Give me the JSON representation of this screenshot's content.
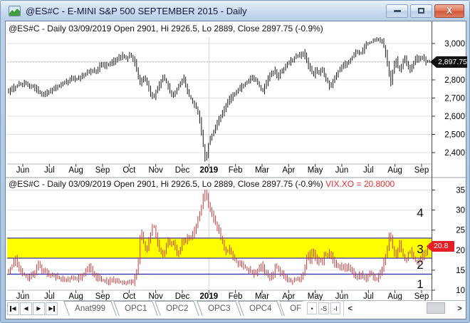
{
  "window": {
    "title": "@ES#C - E-MINI S&P 500 SEPTEMBER 2015 - Daily",
    "close_glyph": "X"
  },
  "panes": {
    "top": {
      "header": "@ES#C - Daily 03/09/2019 Open 2901, Hi 2926.5, Lo 2889, Close 2897.75 (-0.9%)",
      "price_tag": "2,897.75",
      "y_ticks": [
        {
          "v": 3000,
          "t": "3,000"
        },
        {
          "v": 2800,
          "t": "2,800"
        },
        {
          "v": 2700,
          "t": "2,700"
        },
        {
          "v": 2600,
          "t": "2,600"
        },
        {
          "v": 2500,
          "t": "2,500"
        },
        {
          "v": 2400,
          "t": "2,400"
        }
      ]
    },
    "bottom": {
      "header_black": "@ES#C - Daily 03/09/2019 Open 2901, Hi 2926.5, Lo 2889, Close 2897.75 (-0.9%)",
      "header_red": " VIX.XO = 20.8000",
      "value_tag": "20.8",
      "y_ticks": [
        {
          "v": 35,
          "t": "35"
        },
        {
          "v": 30,
          "t": "30"
        },
        {
          "v": 25,
          "t": "25"
        },
        {
          "v": 20,
          "t": "20"
        },
        {
          "v": 15,
          "t": "15"
        },
        {
          "v": 10,
          "t": "10"
        }
      ],
      "zone_labels": [
        {
          "t": "4",
          "v": 29.4
        },
        {
          "t": "3",
          "v": 20.3
        },
        {
          "t": "2",
          "v": 16.4
        },
        {
          "t": "1",
          "v": 11.6
        }
      ]
    }
  },
  "x_axis": {
    "months": [
      "Jun",
      "Jul",
      "Aug",
      "Sep",
      "Oct",
      "Nov",
      "Dec",
      "2019",
      "Feb",
      "Mar",
      "Apr",
      "May",
      "Jun",
      "Jul",
      "Aug",
      "Sep"
    ],
    "bold_index": 7
  },
  "tabbar": {
    "tabs": [
      "Anat999",
      "OPC1",
      "OPC2",
      "OPC3",
      "OPC4"
    ],
    "tab_cut": "OF",
    "mini_buttons": [
      "•",
      "-S",
      "-I"
    ],
    "scroll_left": "<",
    "scroll_right": ">"
  },
  "colors": {
    "price_bars": "#141414",
    "vix_bars": "#c43a3a",
    "band_fill": "#ffff00",
    "band_lines": "#2323ad",
    "tag_black": "#101010",
    "tag_red": "#e61e25",
    "red_text": "#e23030",
    "grid": "#dcdfe3"
  },
  "chart_data": [
    {
      "type": "ohlc-bar",
      "symbol": "@ES#C",
      "interval": "Daily",
      "title": "@ES#C - Daily 03/09/2019 Open 2901, Hi 2926.5, Lo 2889, Close 2897.75 (-0.9%)",
      "open": 2901,
      "high": 2926.5,
      "low": 2889,
      "close": 2897.75,
      "change_pct": -0.9,
      "ylim": [
        2337,
        3035
      ],
      "y_gridlines": [
        2400,
        2500,
        2600,
        2700,
        2800,
        2900,
        3000
      ],
      "x_categories": [
        "Jun 2018",
        "Jul",
        "Aug",
        "Sep",
        "Oct",
        "Nov",
        "Dec",
        "2019",
        "Feb",
        "Mar",
        "Apr",
        "May",
        "Jun",
        "Jul",
        "Aug",
        "Sep 2019"
      ],
      "waypoints": [
        [
          0.0,
          2735
        ],
        [
          0.015,
          2760
        ],
        [
          0.035,
          2780
        ],
        [
          0.055,
          2770
        ],
        [
          0.075,
          2735
        ],
        [
          0.085,
          2715
        ],
        [
          0.1,
          2740
        ],
        [
          0.12,
          2765
        ],
        [
          0.14,
          2790
        ],
        [
          0.155,
          2810
        ],
        [
          0.162,
          2800
        ],
        [
          0.175,
          2820
        ],
        [
          0.19,
          2840
        ],
        [
          0.205,
          2850
        ],
        [
          0.212,
          2840
        ],
        [
          0.218,
          2895
        ],
        [
          0.228,
          2880
        ],
        [
          0.24,
          2885
        ],
        [
          0.252,
          2905
        ],
        [
          0.265,
          2925
        ],
        [
          0.272,
          2935
        ],
        [
          0.28,
          2915
        ],
        [
          0.29,
          2940
        ],
        [
          0.3,
          2900
        ],
        [
          0.307,
          2830
        ],
        [
          0.312,
          2775
        ],
        [
          0.32,
          2820
        ],
        [
          0.33,
          2780
        ],
        [
          0.34,
          2715
        ],
        [
          0.345,
          2700
        ],
        [
          0.352,
          2740
        ],
        [
          0.36,
          2780
        ],
        [
          0.368,
          2815
        ],
        [
          0.375,
          2790
        ],
        [
          0.385,
          2730
        ],
        [
          0.39,
          2705
        ],
        [
          0.398,
          2745
        ],
        [
          0.406,
          2770
        ],
        [
          0.413,
          2790
        ],
        [
          0.416,
          2815
        ],
        [
          0.422,
          2750
        ],
        [
          0.428,
          2715
        ],
        [
          0.435,
          2690
        ],
        [
          0.442,
          2665
        ],
        [
          0.448,
          2635
        ],
        [
          0.452,
          2600
        ],
        [
          0.456,
          2545
        ],
        [
          0.46,
          2480
        ],
        [
          0.464,
          2405
        ],
        [
          0.468,
          2345
        ],
        [
          0.472,
          2410
        ],
        [
          0.476,
          2465
        ],
        [
          0.48,
          2480
        ],
        [
          0.485,
          2510
        ],
        [
          0.49,
          2530
        ],
        [
          0.497,
          2570
        ],
        [
          0.504,
          2605
        ],
        [
          0.511,
          2635
        ],
        [
          0.518,
          2665
        ],
        [
          0.525,
          2695
        ],
        [
          0.532,
          2710
        ],
        [
          0.538,
          2720
        ],
        [
          0.545,
          2740
        ],
        [
          0.552,
          2760
        ],
        [
          0.56,
          2780
        ],
        [
          0.568,
          2795
        ],
        [
          0.576,
          2810
        ],
        [
          0.584,
          2800
        ],
        [
          0.592,
          2785
        ],
        [
          0.598,
          2750
        ],
        [
          0.602,
          2735
        ],
        [
          0.61,
          2780
        ],
        [
          0.618,
          2815
        ],
        [
          0.626,
          2840
        ],
        [
          0.632,
          2855
        ],
        [
          0.637,
          2810
        ],
        [
          0.643,
          2835
        ],
        [
          0.65,
          2855
        ],
        [
          0.658,
          2875
        ],
        [
          0.666,
          2900
        ],
        [
          0.675,
          2915
        ],
        [
          0.684,
          2930
        ],
        [
          0.693,
          2940
        ],
        [
          0.7,
          2950
        ],
        [
          0.706,
          2915
        ],
        [
          0.712,
          2870
        ],
        [
          0.718,
          2850
        ],
        [
          0.723,
          2825
        ],
        [
          0.729,
          2855
        ],
        [
          0.735,
          2840
        ],
        [
          0.741,
          2860
        ],
        [
          0.748,
          2830
        ],
        [
          0.756,
          2790
        ],
        [
          0.762,
          2755
        ],
        [
          0.772,
          2805
        ],
        [
          0.782,
          2850
        ],
        [
          0.79,
          2880
        ],
        [
          0.8,
          2890
        ],
        [
          0.81,
          2910
        ],
        [
          0.82,
          2945
        ],
        [
          0.828,
          2950
        ],
        [
          0.836,
          2945
        ],
        [
          0.846,
          2995
        ],
        [
          0.856,
          3005
        ],
        [
          0.866,
          3015
        ],
        [
          0.876,
          3020
        ],
        [
          0.883,
          3022
        ],
        [
          0.888,
          2995
        ],
        [
          0.893,
          2950
        ],
        [
          0.898,
          2880
        ],
        [
          0.903,
          2815
        ],
        [
          0.906,
          2780
        ],
        [
          0.91,
          2840
        ],
        [
          0.917,
          2920
        ],
        [
          0.922,
          2875
        ],
        [
          0.927,
          2855
        ],
        [
          0.932,
          2880
        ],
        [
          0.937,
          2925
        ],
        [
          0.942,
          2900
        ],
        [
          0.947,
          2865
        ],
        [
          0.951,
          2845
        ],
        [
          0.956,
          2880
        ],
        [
          0.962,
          2905
        ],
        [
          0.968,
          2925
        ],
        [
          0.974,
          2910
        ],
        [
          0.98,
          2930
        ],
        [
          0.988,
          2900
        ],
        [
          0.995,
          2898
        ]
      ]
    },
    {
      "type": "bar",
      "name": "VIX.XO",
      "last_value": 20.8,
      "ylim": [
        10,
        35.2
      ],
      "y_gridlines": [
        10,
        15,
        20,
        25,
        30,
        35
      ],
      "h_lines": [
        23,
        18,
        14
      ],
      "band": [
        18,
        23
      ],
      "waypoints": [
        [
          0.0,
          14.5
        ],
        [
          0.01,
          16
        ],
        [
          0.018,
          18
        ],
        [
          0.028,
          15
        ],
        [
          0.04,
          13.8
        ],
        [
          0.052,
          13.2
        ],
        [
          0.065,
          14.5
        ],
        [
          0.072,
          16.8
        ],
        [
          0.082,
          15
        ],
        [
          0.095,
          14
        ],
        [
          0.11,
          13.5
        ],
        [
          0.125,
          13
        ],
        [
          0.14,
          12.6
        ],
        [
          0.15,
          13.2
        ],
        [
          0.162,
          12.8
        ],
        [
          0.175,
          13.5
        ],
        [
          0.188,
          15
        ],
        [
          0.193,
          16.3
        ],
        [
          0.2,
          14.5
        ],
        [
          0.212,
          13
        ],
        [
          0.225,
          12.5
        ],
        [
          0.238,
          12.2
        ],
        [
          0.25,
          12.8
        ],
        [
          0.262,
          12.1
        ],
        [
          0.275,
          11.8
        ],
        [
          0.287,
          12.2
        ],
        [
          0.296,
          12
        ],
        [
          0.303,
          13.5
        ],
        [
          0.308,
          16
        ],
        [
          0.312,
          22
        ],
        [
          0.316,
          24.9
        ],
        [
          0.322,
          21.5
        ],
        [
          0.328,
          19.5
        ],
        [
          0.334,
          22.5
        ],
        [
          0.34,
          24.5
        ],
        [
          0.344,
          27
        ],
        [
          0.35,
          24
        ],
        [
          0.356,
          21
        ],
        [
          0.362,
          19.3
        ],
        [
          0.368,
          18.5
        ],
        [
          0.374,
          20.5
        ],
        [
          0.378,
          22.8
        ],
        [
          0.384,
          21.3
        ],
        [
          0.39,
          22.5
        ],
        [
          0.396,
          20.5
        ],
        [
          0.402,
          18.8
        ],
        [
          0.408,
          20
        ],
        [
          0.413,
          22.5
        ],
        [
          0.42,
          22
        ],
        [
          0.426,
          23.5
        ],
        [
          0.432,
          22.5
        ],
        [
          0.438,
          24
        ],
        [
          0.444,
          25.5
        ],
        [
          0.45,
          27.5
        ],
        [
          0.456,
          30
        ],
        [
          0.462,
          33
        ],
        [
          0.467,
          36.1
        ],
        [
          0.472,
          32
        ],
        [
          0.477,
          30
        ],
        [
          0.482,
          29.5
        ],
        [
          0.488,
          27.5
        ],
        [
          0.494,
          26
        ],
        [
          0.5,
          24.5
        ],
        [
          0.506,
          22.5
        ],
        [
          0.512,
          20.5
        ],
        [
          0.518,
          19.3
        ],
        [
          0.524,
          20.5
        ],
        [
          0.53,
          19
        ],
        [
          0.538,
          17.5
        ],
        [
          0.545,
          16.5
        ],
        [
          0.552,
          16.8
        ],
        [
          0.56,
          15.8
        ],
        [
          0.568,
          15.2
        ],
        [
          0.576,
          14.5
        ],
        [
          0.584,
          14
        ],
        [
          0.592,
          15
        ],
        [
          0.598,
          16.5
        ],
        [
          0.606,
          15
        ],
        [
          0.614,
          13.8
        ],
        [
          0.62,
          13.2
        ],
        [
          0.628,
          14
        ],
        [
          0.634,
          16.5
        ],
        [
          0.64,
          15
        ],
        [
          0.648,
          14
        ],
        [
          0.656,
          13.2
        ],
        [
          0.665,
          12.5
        ],
        [
          0.674,
          12.2
        ],
        [
          0.684,
          12.8
        ],
        [
          0.693,
          13.2
        ],
        [
          0.7,
          14.5
        ],
        [
          0.706,
          17.5
        ],
        [
          0.71,
          19.5
        ],
        [
          0.715,
          17.5
        ],
        [
          0.72,
          20.5
        ],
        [
          0.726,
          18.5
        ],
        [
          0.732,
          17
        ],
        [
          0.738,
          18
        ],
        [
          0.744,
          17
        ],
        [
          0.75,
          19.5
        ],
        [
          0.756,
          18.5
        ],
        [
          0.762,
          19.7
        ],
        [
          0.768,
          17.5
        ],
        [
          0.774,
          16.5
        ],
        [
          0.78,
          16
        ],
        [
          0.786,
          15.5
        ],
        [
          0.792,
          16.5
        ],
        [
          0.798,
          15.2
        ],
        [
          0.804,
          16.2
        ],
        [
          0.81,
          15.5
        ],
        [
          0.816,
          14.5
        ],
        [
          0.822,
          13.5
        ],
        [
          0.828,
          13
        ],
        [
          0.834,
          14.2
        ],
        [
          0.84,
          13.2
        ],
        [
          0.846,
          13
        ],
        [
          0.852,
          13.8
        ],
        [
          0.858,
          14.5
        ],
        [
          0.864,
          13.5
        ],
        [
          0.87,
          12.8
        ],
        [
          0.876,
          13.2
        ],
        [
          0.882,
          14.5
        ],
        [
          0.888,
          16.5
        ],
        [
          0.893,
          18.5
        ],
        [
          0.898,
          21
        ],
        [
          0.903,
          24.8
        ],
        [
          0.908,
          21.5
        ],
        [
          0.913,
          19.5
        ],
        [
          0.917,
          18
        ],
        [
          0.922,
          20
        ],
        [
          0.927,
          21.8
        ],
        [
          0.932,
          19.5
        ],
        [
          0.937,
          18
        ],
        [
          0.942,
          17
        ],
        [
          0.947,
          19.3
        ],
        [
          0.951,
          19.9
        ],
        [
          0.956,
          18.5
        ],
        [
          0.962,
          17.5
        ],
        [
          0.968,
          16.8
        ],
        [
          0.974,
          17.5
        ],
        [
          0.98,
          18.5
        ],
        [
          0.988,
          19.5
        ],
        [
          0.995,
          20.8
        ]
      ]
    }
  ]
}
